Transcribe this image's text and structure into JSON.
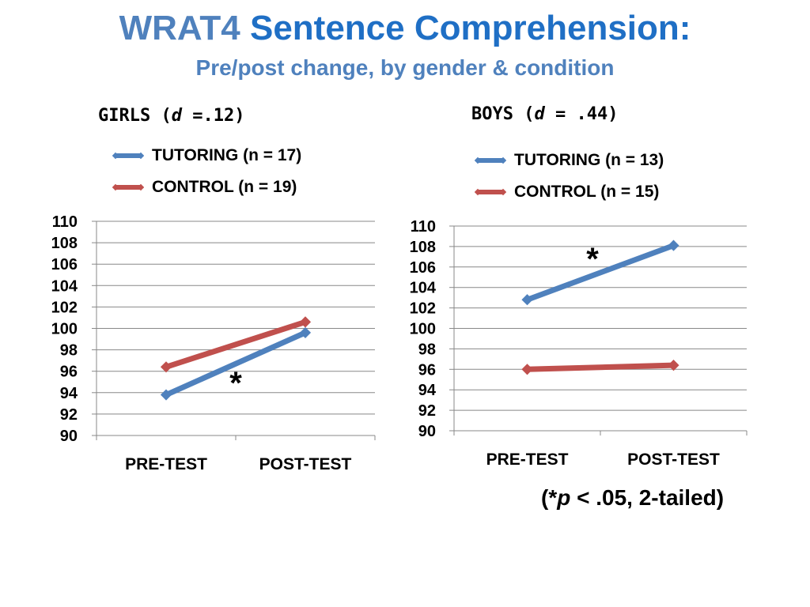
{
  "header": {
    "title_a": "WRAT4",
    "title_b": "Sentence Comprehension:",
    "subtitle": "Pre/post change, by gender & condition"
  },
  "footnote": {
    "open": "(*",
    "p": "p",
    "rest": " < .05, 2-tailed)"
  },
  "colors": {
    "tutoring": "#4f81bd",
    "control": "#c0504d",
    "title": "#4f81bd"
  },
  "chart_data": [
    {
      "type": "line",
      "title_prefix": "GIRLS (",
      "title_d": "d",
      "title_suffix": " =.12)",
      "categories": [
        "PRE-TEST",
        "POST-TEST"
      ],
      "ylim": [
        90,
        110
      ],
      "yticks": [
        "110",
        "108",
        "106",
        "104",
        "102",
        "100",
        "98",
        "96",
        "94",
        "92",
        "90"
      ],
      "grid": true,
      "series": [
        {
          "name": "TUTORING (n = 17)",
          "values": [
            93.8,
            99.6
          ]
        },
        {
          "name": "CONTROL (n = 19)",
          "values": [
            96.4,
            100.6
          ]
        }
      ],
      "annotation": {
        "text": "*",
        "between": "segment",
        "series": 0
      }
    },
    {
      "type": "line",
      "title_prefix": "BOYS (",
      "title_d": "d",
      "title_suffix": " = .44)",
      "categories": [
        "PRE-TEST",
        "POST-TEST"
      ],
      "ylim": [
        90,
        110
      ],
      "yticks": [
        "110",
        "108",
        "106",
        "104",
        "102",
        "100",
        "98",
        "96",
        "94",
        "92",
        "90"
      ],
      "grid": true,
      "series": [
        {
          "name": "TUTORING (n = 13)",
          "values": [
            102.8,
            108.1
          ]
        },
        {
          "name": "CONTROL (n = 15)",
          "values": [
            96.0,
            96.4
          ]
        }
      ],
      "annotation": {
        "text": "*",
        "between": "segment",
        "series": 0
      }
    }
  ]
}
